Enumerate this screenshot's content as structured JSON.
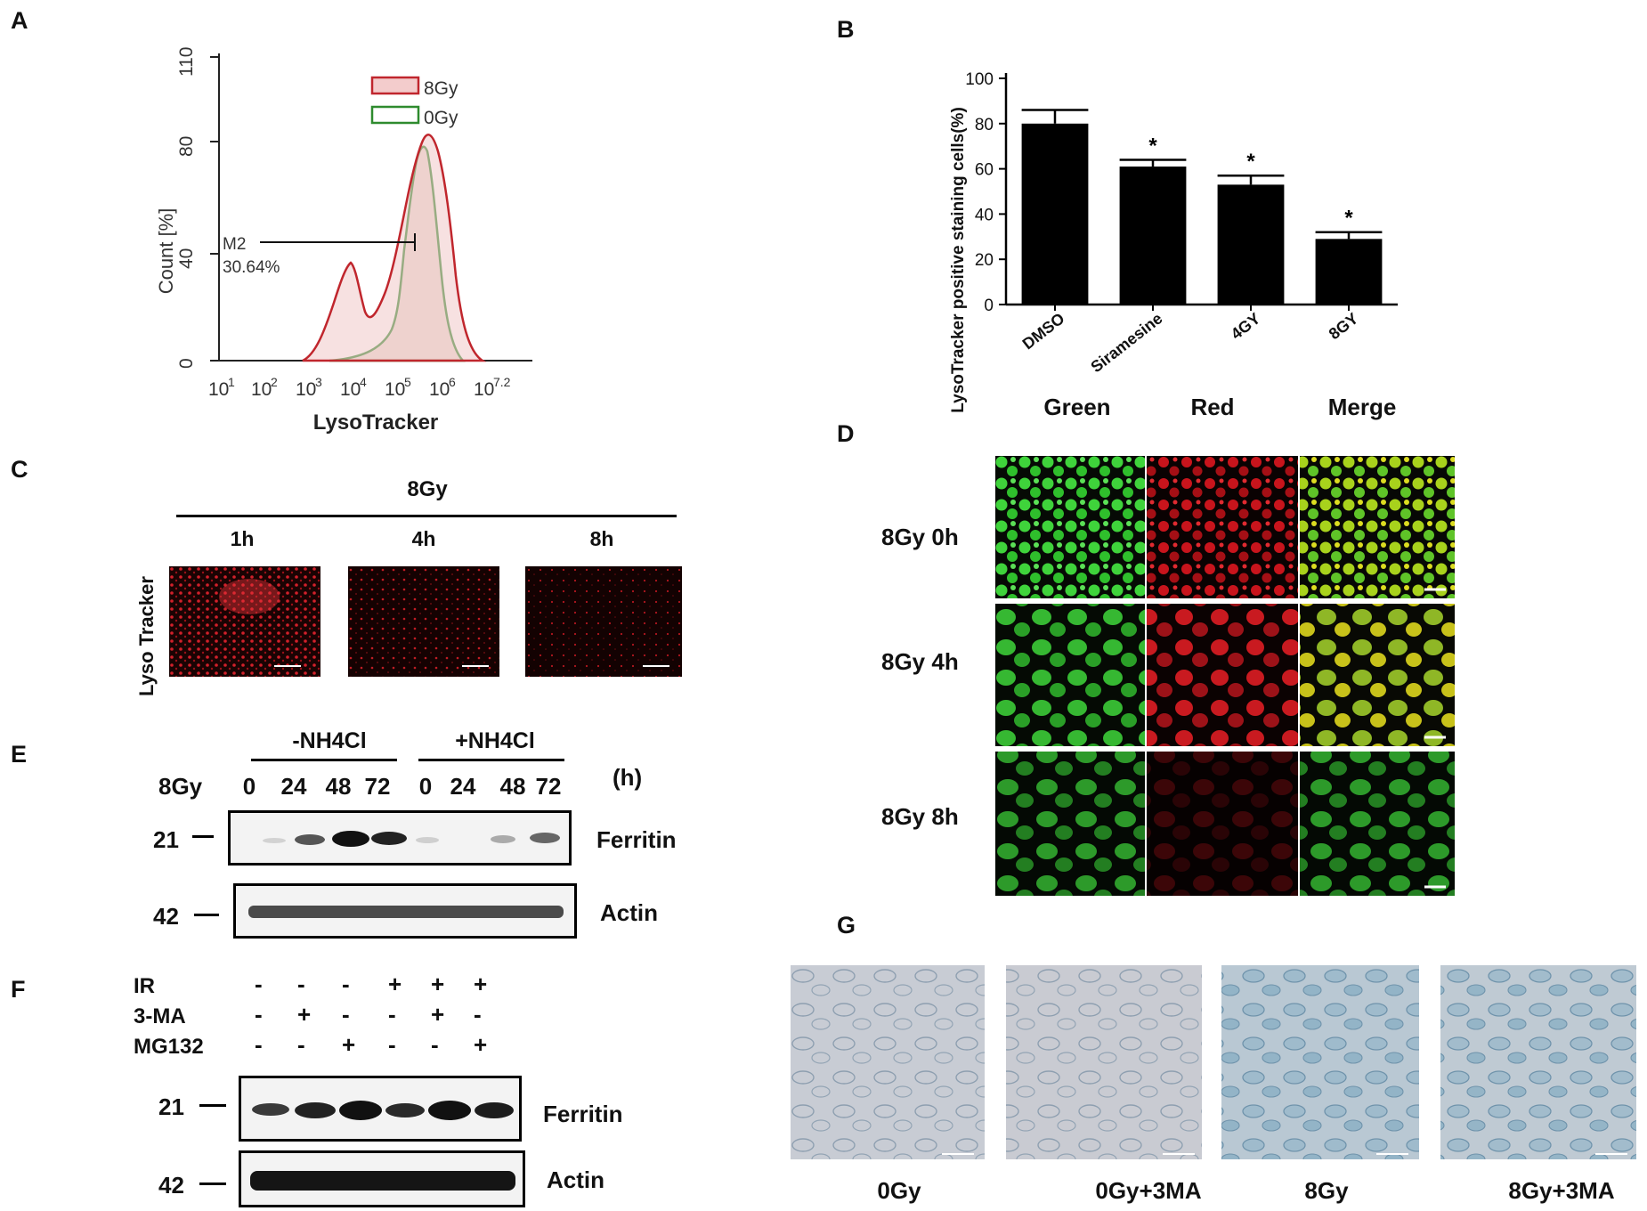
{
  "panels": {
    "A": "A",
    "B": "B",
    "C": "C",
    "D": "D",
    "E": "E",
    "F": "F",
    "G": "G"
  },
  "panelA": {
    "legend": [
      "8Gy",
      "0Gy"
    ],
    "ylabel": "Count [%]",
    "xlabel": "LysoTracker",
    "yticks": [
      "0",
      "40",
      "80",
      "110"
    ],
    "xticks": [
      "10",
      "1",
      "10",
      "2",
      "10",
      "3",
      "10",
      "4",
      "10",
      "5",
      "10",
      "6",
      "10",
      "7.2"
    ],
    "gate_label": "M2",
    "gate_value": "30.64%",
    "colors": {
      "8Gy": "#c0262d",
      "0Gy": "#2e8b2e"
    }
  },
  "chart_data": {
    "type": "bar",
    "categories": [
      "DMSO",
      "Siramesine",
      "4GY",
      "8GY"
    ],
    "values": [
      80,
      61,
      53,
      29
    ],
    "errors": [
      6,
      3,
      4,
      3
    ],
    "significance": [
      "",
      "*",
      "*",
      "*"
    ],
    "ylabel": "LysoTracker positive staining cells(%)",
    "yticks": [
      "0",
      "20",
      "40",
      "60",
      "80",
      "100"
    ],
    "ylim": [
      0,
      100
    ]
  },
  "panelC": {
    "group": "8Gy",
    "times": [
      "1h",
      "4h",
      "8h"
    ],
    "row_label": "Lyso Tracker"
  },
  "panelD": {
    "cols": [
      "Green",
      "Red",
      "Merge"
    ],
    "rows": [
      "8Gy 0h",
      "8Gy 4h",
      "8Gy 8h"
    ]
  },
  "panelE": {
    "groups": [
      "-NH4Cl",
      "+NH4Cl"
    ],
    "row_label": "8Gy",
    "times": [
      "0",
      "24",
      "48",
      "72",
      "0",
      "24",
      "48",
      "72"
    ],
    "unit": "(h)",
    "blots": [
      {
        "mw": "21",
        "name": "Ferritin"
      },
      {
        "mw": "42",
        "name": "Actin"
      }
    ]
  },
  "panelF": {
    "treatments": [
      {
        "label": "IR",
        "signs": [
          "-",
          "-",
          "-",
          "+",
          "+",
          "+"
        ]
      },
      {
        "label": "3-MA",
        "signs": [
          "-",
          "+",
          "-",
          "-",
          "+",
          "-"
        ]
      },
      {
        "label": "MG132",
        "signs": [
          "-",
          "-",
          "+",
          "-",
          "-",
          "+"
        ]
      }
    ],
    "blots": [
      {
        "mw": "21",
        "name": "Ferritin"
      },
      {
        "mw": "42",
        "name": "Actin"
      }
    ]
  },
  "panelG": {
    "labels": [
      "0Gy",
      "0Gy+3MA",
      "8Gy",
      "8Gy+3MA"
    ]
  }
}
